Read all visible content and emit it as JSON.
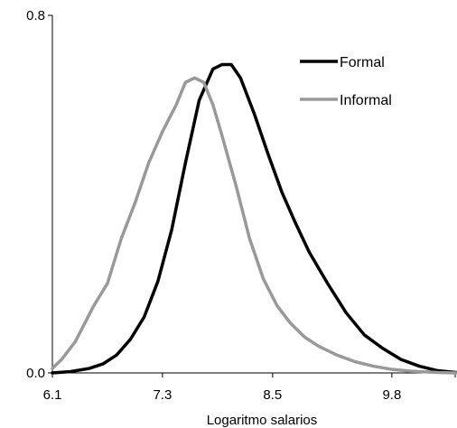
{
  "chart_data": {
    "type": "line",
    "title": "",
    "xlabel": "Logaritmo salarios",
    "ylabel": "",
    "xlim": [
      6.1,
      10.5
    ],
    "ylim": [
      0.0,
      0.8
    ],
    "x_ticks": [
      "6.1",
      "7.3",
      "8.5",
      "9.8"
    ],
    "x_tick_values": [
      6.1,
      7.3,
      8.5,
      9.8
    ],
    "y_ticks": [
      "0.0",
      "0.8"
    ],
    "y_tick_values": [
      0.0,
      0.8
    ],
    "grid": false,
    "legend_position": "top-right",
    "series": [
      {
        "name": "Formal",
        "color": "#000000",
        "points": [
          [
            6.1,
            0.0
          ],
          [
            6.3,
            0.003
          ],
          [
            6.5,
            0.01
          ],
          [
            6.65,
            0.02
          ],
          [
            6.8,
            0.04
          ],
          [
            6.95,
            0.075
          ],
          [
            7.1,
            0.125
          ],
          [
            7.25,
            0.205
          ],
          [
            7.4,
            0.32
          ],
          [
            7.55,
            0.47
          ],
          [
            7.7,
            0.61
          ],
          [
            7.85,
            0.68
          ],
          [
            7.95,
            0.69
          ],
          [
            8.05,
            0.69
          ],
          [
            8.15,
            0.66
          ],
          [
            8.3,
            0.58
          ],
          [
            8.45,
            0.49
          ],
          [
            8.6,
            0.405
          ],
          [
            8.75,
            0.335
          ],
          [
            8.9,
            0.27
          ],
          [
            9.1,
            0.2
          ],
          [
            9.3,
            0.135
          ],
          [
            9.5,
            0.085
          ],
          [
            9.7,
            0.055
          ],
          [
            9.9,
            0.03
          ],
          [
            10.1,
            0.015
          ],
          [
            10.3,
            0.005
          ],
          [
            10.5,
            0.001
          ]
        ]
      },
      {
        "name": "Informal",
        "color": "#999999",
        "points": [
          [
            6.1,
            0.01
          ],
          [
            6.2,
            0.03
          ],
          [
            6.35,
            0.07
          ],
          [
            6.45,
            0.11
          ],
          [
            6.55,
            0.15
          ],
          [
            6.7,
            0.2
          ],
          [
            6.85,
            0.3
          ],
          [
            7.0,
            0.38
          ],
          [
            7.15,
            0.47
          ],
          [
            7.3,
            0.54
          ],
          [
            7.45,
            0.6
          ],
          [
            7.55,
            0.65
          ],
          [
            7.65,
            0.66
          ],
          [
            7.75,
            0.65
          ],
          [
            7.85,
            0.6
          ],
          [
            7.95,
            0.53
          ],
          [
            8.1,
            0.42
          ],
          [
            8.25,
            0.3
          ],
          [
            8.4,
            0.21
          ],
          [
            8.55,
            0.15
          ],
          [
            8.7,
            0.11
          ],
          [
            8.85,
            0.08
          ],
          [
            9.0,
            0.06
          ],
          [
            9.2,
            0.04
          ],
          [
            9.4,
            0.025
          ],
          [
            9.6,
            0.015
          ],
          [
            9.8,
            0.008
          ],
          [
            10.0,
            0.004
          ],
          [
            10.3,
            0.001
          ],
          [
            10.5,
            0.0
          ]
        ]
      }
    ]
  }
}
